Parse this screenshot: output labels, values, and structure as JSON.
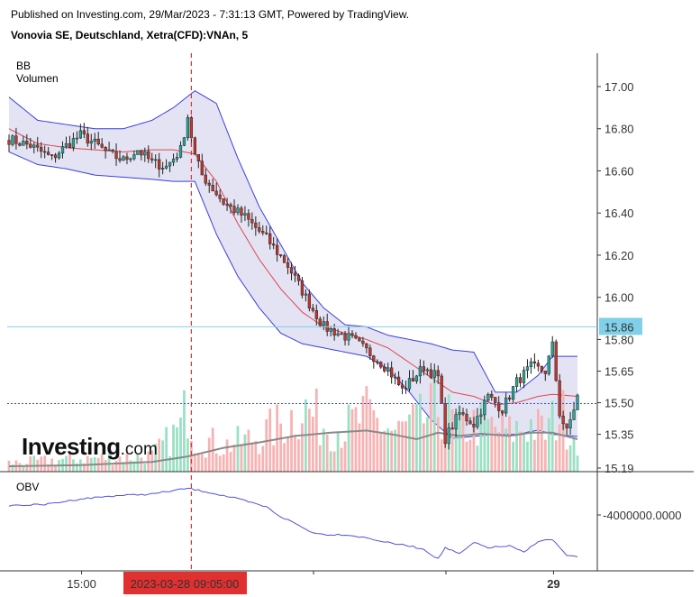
{
  "header": {
    "published": "Published on Investing.com, 29/Mar/2023 - 7:31:13 GMT, Powered by TradingView.",
    "symbol": "Vonovia SE, Deutschland, Xetra(CFD):VNAn, 5"
  },
  "indicators": {
    "bb": "BB",
    "volume": "Volumen",
    "obv": "OBV"
  },
  "logo": {
    "main": "Investing",
    "suffix": ".com"
  },
  "colors": {
    "up": "#26a69a",
    "down": "#c2362f",
    "bb_band": "#3b3fe0",
    "bb_mid": "#e0474c",
    "bb_fill": "#e3e3f3",
    "vol_up": "#9be0c4",
    "vol_down": "#f7b3b3",
    "obv_line": "#5050e0",
    "marker": "#e03030",
    "current_price_line": "#3050e0",
    "price_label_bg": "#7fd0e8"
  },
  "chart_data": {
    "type": "candlestick",
    "price_axis": {
      "ticks": [
        "17.00",
        "16.80",
        "16.60",
        "16.40",
        "16.20",
        "16.00",
        "15.80",
        "15.65",
        "15.50",
        "15.35",
        "15.19"
      ],
      "ylim": [
        15.19,
        17.08
      ]
    },
    "price_labels": {
      "highlight": "15.86",
      "current": "15.50"
    },
    "obv_axis": {
      "ticks": [
        "-4000000.0000"
      ]
    },
    "x_labels": [
      {
        "label": "15:00",
        "pos": 0.13
      },
      {
        "label": "2023-03-28 09:05:00",
        "pos": 0.31,
        "highlight": true
      },
      {
        "label": "29",
        "pos": 0.955,
        "bold": true
      }
    ],
    "marker_label": "2023-03-28 09:05:00",
    "close_path": [
      [
        0,
        16.75
      ],
      [
        6,
        16.72
      ],
      [
        12,
        16.66
      ],
      [
        16,
        16.72
      ],
      [
        20,
        16.77
      ],
      [
        24,
        16.73
      ],
      [
        28,
        16.68
      ],
      [
        32,
        16.65
      ],
      [
        36,
        16.7
      ],
      [
        40,
        16.64
      ],
      [
        44,
        16.62
      ],
      [
        48,
        16.7
      ],
      [
        50,
        16.86
      ],
      [
        52,
        16.67
      ],
      [
        54,
        16.58
      ],
      [
        60,
        16.45
      ],
      [
        66,
        16.38
      ],
      [
        72,
        16.28
      ],
      [
        78,
        16.15
      ],
      [
        84,
        15.97
      ],
      [
        88,
        15.86
      ],
      [
        92,
        15.83
      ],
      [
        96,
        15.8
      ],
      [
        102,
        15.72
      ],
      [
        106,
        15.66
      ],
      [
        110,
        15.56
      ],
      [
        116,
        15.67
      ],
      [
        120,
        15.62
      ],
      [
        122,
        15.33
      ],
      [
        126,
        15.45
      ],
      [
        130,
        15.4
      ],
      [
        134,
        15.53
      ],
      [
        138,
        15.47
      ],
      [
        142,
        15.6
      ],
      [
        146,
        15.67
      ],
      [
        150,
        15.65
      ],
      [
        152,
        15.77
      ],
      [
        154,
        15.45
      ],
      [
        156,
        15.36
      ],
      [
        159,
        15.53
      ]
    ],
    "bb_upper": [
      [
        0,
        16.95
      ],
      [
        8,
        16.84
      ],
      [
        16,
        16.82
      ],
      [
        24,
        16.8
      ],
      [
        32,
        16.8
      ],
      [
        40,
        16.84
      ],
      [
        46,
        16.9
      ],
      [
        52,
        16.98
      ],
      [
        58,
        16.92
      ],
      [
        64,
        16.66
      ],
      [
        70,
        16.43
      ],
      [
        76,
        16.25
      ],
      [
        82,
        16.07
      ],
      [
        88,
        15.95
      ],
      [
        94,
        15.87
      ],
      [
        100,
        15.86
      ],
      [
        106,
        15.82
      ],
      [
        112,
        15.8
      ],
      [
        118,
        15.78
      ],
      [
        124,
        15.75
      ],
      [
        130,
        15.74
      ],
      [
        136,
        15.55
      ],
      [
        142,
        15.55
      ],
      [
        148,
        15.63
      ],
      [
        152,
        15.72
      ],
      [
        159,
        15.72
      ]
    ],
    "bb_mid": [
      [
        0,
        16.8
      ],
      [
        8,
        16.73
      ],
      [
        16,
        16.71
      ],
      [
        24,
        16.7
      ],
      [
        32,
        16.69
      ],
      [
        40,
        16.7
      ],
      [
        46,
        16.7
      ],
      [
        52,
        16.68
      ],
      [
        58,
        16.55
      ],
      [
        64,
        16.35
      ],
      [
        70,
        16.18
      ],
      [
        76,
        16.04
      ],
      [
        82,
        15.93
      ],
      [
        88,
        15.86
      ],
      [
        94,
        15.83
      ],
      [
        100,
        15.8
      ],
      [
        106,
        15.76
      ],
      [
        112,
        15.69
      ],
      [
        118,
        15.62
      ],
      [
        124,
        15.55
      ],
      [
        130,
        15.53
      ],
      [
        136,
        15.49
      ],
      [
        142,
        15.5
      ],
      [
        148,
        15.53
      ],
      [
        152,
        15.54
      ],
      [
        159,
        15.53
      ]
    ],
    "bb_lower": [
      [
        0,
        16.69
      ],
      [
        8,
        16.63
      ],
      [
        16,
        16.61
      ],
      [
        24,
        16.58
      ],
      [
        32,
        16.57
      ],
      [
        40,
        16.56
      ],
      [
        46,
        16.55
      ],
      [
        52,
        16.55
      ],
      [
        58,
        16.3
      ],
      [
        64,
        16.1
      ],
      [
        70,
        15.95
      ],
      [
        76,
        15.83
      ],
      [
        82,
        15.78
      ],
      [
        88,
        15.76
      ],
      [
        94,
        15.74
      ],
      [
        100,
        15.72
      ],
      [
        106,
        15.66
      ],
      [
        112,
        15.55
      ],
      [
        118,
        15.42
      ],
      [
        124,
        15.33
      ],
      [
        130,
        15.34
      ],
      [
        136,
        15.35
      ],
      [
        142,
        15.35
      ],
      [
        148,
        15.37
      ],
      [
        152,
        15.35
      ],
      [
        159,
        15.34
      ]
    ],
    "volume_profile": [
      [
        0,
        0.1
      ],
      [
        20,
        0.15
      ],
      [
        40,
        0.18
      ],
      [
        48,
        0.5
      ],
      [
        50,
        0.8
      ],
      [
        52,
        0.4
      ],
      [
        60,
        0.3
      ],
      [
        70,
        0.4
      ],
      [
        78,
        0.6
      ],
      [
        82,
        0.75
      ],
      [
        88,
        0.55
      ],
      [
        94,
        0.5
      ],
      [
        100,
        0.65
      ],
      [
        108,
        0.45
      ],
      [
        116,
        0.6
      ],
      [
        120,
        0.75
      ],
      [
        126,
        0.5
      ],
      [
        132,
        0.55
      ],
      [
        140,
        0.45
      ],
      [
        146,
        0.55
      ],
      [
        150,
        0.45
      ],
      [
        154,
        0.7
      ],
      [
        159,
        0.4
      ]
    ],
    "volume_ma": [
      [
        0,
        0.05
      ],
      [
        20,
        0.06
      ],
      [
        40,
        0.09
      ],
      [
        50,
        0.14
      ],
      [
        60,
        0.22
      ],
      [
        70,
        0.27
      ],
      [
        80,
        0.33
      ],
      [
        90,
        0.36
      ],
      [
        100,
        0.38
      ],
      [
        108,
        0.34
      ],
      [
        114,
        0.3
      ],
      [
        120,
        0.36
      ],
      [
        126,
        0.33
      ],
      [
        132,
        0.35
      ],
      [
        140,
        0.33
      ],
      [
        146,
        0.36
      ],
      [
        152,
        0.36
      ],
      [
        159,
        0.3
      ]
    ],
    "obv": [
      [
        0,
        0.26
      ],
      [
        10,
        0.25
      ],
      [
        20,
        0.18
      ],
      [
        30,
        0.14
      ],
      [
        40,
        0.12
      ],
      [
        50,
        0.05
      ],
      [
        56,
        0.1
      ],
      [
        64,
        0.18
      ],
      [
        72,
        0.28
      ],
      [
        76,
        0.4
      ],
      [
        80,
        0.48
      ],
      [
        84,
        0.58
      ],
      [
        88,
        0.62
      ],
      [
        94,
        0.62
      ],
      [
        100,
        0.66
      ],
      [
        106,
        0.72
      ],
      [
        112,
        0.76
      ],
      [
        116,
        0.8
      ],
      [
        120,
        0.92
      ],
      [
        122,
        0.78
      ],
      [
        126,
        0.86
      ],
      [
        130,
        0.72
      ],
      [
        134,
        0.78
      ],
      [
        140,
        0.76
      ],
      [
        144,
        0.84
      ],
      [
        148,
        0.7
      ],
      [
        152,
        0.68
      ],
      [
        156,
        0.88
      ],
      [
        159,
        0.9
      ]
    ],
    "n_candles": 160,
    "marker_index": 51
  }
}
